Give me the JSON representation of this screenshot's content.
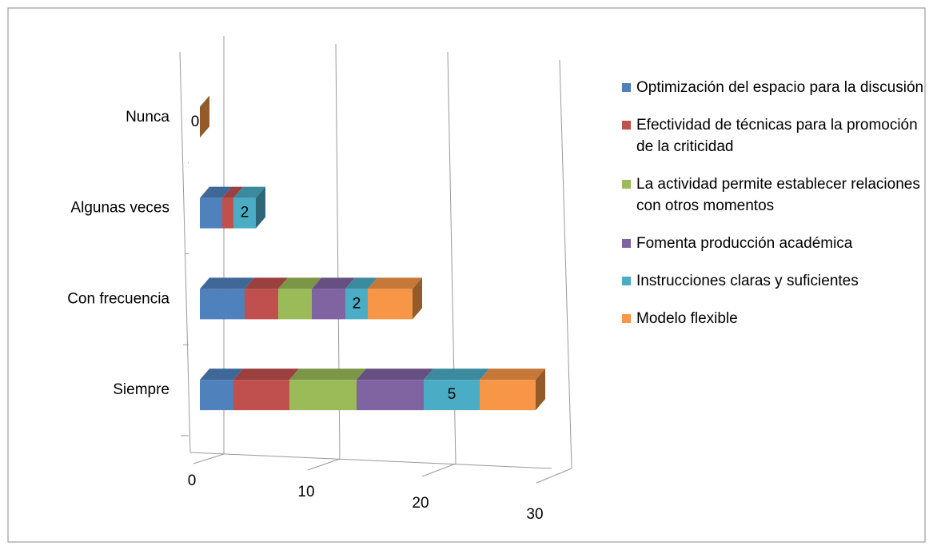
{
  "chart_data": {
    "type": "bar3d_stacked_horizontal",
    "categories": [
      "Siempre",
      "Con frecuencia",
      "Algunas veces",
      "Nunca"
    ],
    "series": [
      {
        "name": "Optimización del espacio para la discusión",
        "color": "#4f81bd",
        "values": [
          3,
          4,
          2,
          0
        ]
      },
      {
        "name": "Efectividad de técnicas para la promoción de la criticidad",
        "color": "#c0504d",
        "values": [
          5,
          3,
          1,
          0
        ]
      },
      {
        "name": "La actividad permite establecer relaciones con otros momentos",
        "color": "#9bbb59",
        "values": [
          6,
          3,
          0,
          0
        ]
      },
      {
        "name": "Fomenta producción académica",
        "color": "#8064a2",
        "values": [
          6,
          3,
          0,
          0
        ]
      },
      {
        "name": "Instrucciones claras y suficientes",
        "color": "#4bacc6",
        "values": [
          5,
          2,
          2,
          0
        ],
        "show_labels": true
      },
      {
        "name": "Modelo flexible",
        "color": "#f79646",
        "values": [
          5,
          4,
          0,
          0
        ]
      }
    ],
    "xlim": [
      0,
      30
    ],
    "xticks": [
      0,
      10,
      20,
      30
    ],
    "grid": true,
    "legend": "right"
  }
}
